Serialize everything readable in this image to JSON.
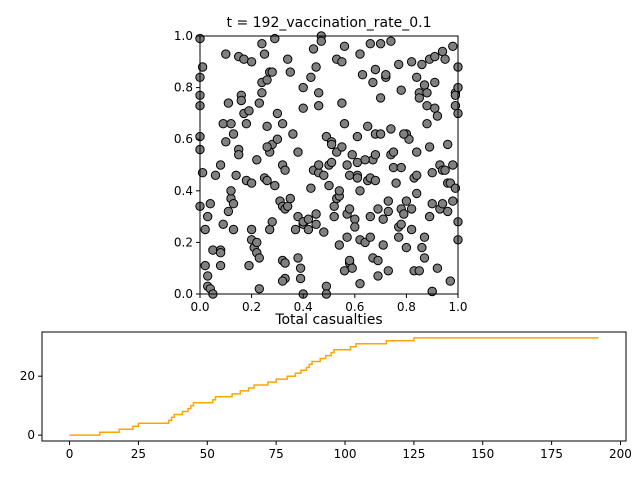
{
  "chart_data": [
    {
      "type": "scatter",
      "title": "t = 192_vaccination_rate_0.1",
      "xlabel": "",
      "ylabel": "",
      "xlim": [
        0,
        1
      ],
      "ylim": [
        0,
        1
      ],
      "grid": false,
      "marker_color": "#808080",
      "marker_edge_color": "#000000",
      "xticks": [
        "0.0",
        "0.2",
        "0.4",
        "0.6",
        "0.8",
        "1.0"
      ],
      "yticks": [
        "0.0",
        "0.2",
        "0.4",
        "0.6",
        "0.8",
        "1.0"
      ],
      "points": [
        [
          0.0,
          0.99
        ],
        [
          0.0,
          0.84
        ],
        [
          0.01,
          0.88
        ],
        [
          0.0,
          0.77
        ],
        [
          0.0,
          0.73
        ],
        [
          0.0,
          0.61
        ],
        [
          0.0,
          0.56
        ],
        [
          0.0,
          0.34
        ],
        [
          0.01,
          0.47
        ],
        [
          0.02,
          0.25
        ],
        [
          0.02,
          0.11
        ],
        [
          0.03,
          0.07
        ],
        [
          0.03,
          0.03
        ],
        [
          0.04,
          0.02
        ],
        [
          0.05,
          0.0
        ],
        [
          0.04,
          0.35
        ],
        [
          0.05,
          0.17
        ],
        [
          0.03,
          0.3
        ],
        [
          0.08,
          0.17
        ],
        [
          0.08,
          0.16
        ],
        [
          0.08,
          0.11
        ],
        [
          0.09,
          0.27
        ],
        [
          0.09,
          0.66
        ],
        [
          0.08,
          0.5
        ],
        [
          0.1,
          0.59
        ],
        [
          0.1,
          0.93
        ],
        [
          0.11,
          0.74
        ],
        [
          0.11,
          0.32
        ],
        [
          0.12,
          0.37
        ],
        [
          0.12,
          0.4
        ],
        [
          0.13,
          0.35
        ],
        [
          0.13,
          0.25
        ],
        [
          0.13,
          0.62
        ],
        [
          0.14,
          0.46
        ],
        [
          0.15,
          0.92
        ],
        [
          0.15,
          0.56
        ],
        [
          0.15,
          0.54
        ],
        [
          0.16,
          0.77
        ],
        [
          0.16,
          0.75
        ],
        [
          0.17,
          0.7
        ],
        [
          0.17,
          0.91
        ],
        [
          0.18,
          0.44
        ],
        [
          0.19,
          0.71
        ],
        [
          0.19,
          0.11
        ],
        [
          0.2,
          0.25
        ],
        [
          0.2,
          0.21
        ],
        [
          0.2,
          0.43
        ],
        [
          0.2,
          0.9
        ],
        [
          0.21,
          0.18
        ],
        [
          0.22,
          0.2
        ],
        [
          0.22,
          0.16
        ],
        [
          0.23,
          0.02
        ],
        [
          0.23,
          0.14
        ],
        [
          0.23,
          0.74
        ],
        [
          0.24,
          0.78
        ],
        [
          0.24,
          0.97
        ],
        [
          0.24,
          0.82
        ],
        [
          0.25,
          0.93
        ],
        [
          0.25,
          0.45
        ],
        [
          0.26,
          0.44
        ],
        [
          0.26,
          0.83
        ],
        [
          0.26,
          0.65
        ],
        [
          0.27,
          0.86
        ],
        [
          0.27,
          0.55
        ],
        [
          0.27,
          0.25
        ],
        [
          0.28,
          0.28
        ],
        [
          0.28,
          0.58
        ],
        [
          0.28,
          0.86
        ],
        [
          0.29,
          0.42
        ],
        [
          0.29,
          0.99
        ],
        [
          0.3,
          0.7
        ],
        [
          0.31,
          0.36
        ],
        [
          0.32,
          0.66
        ],
        [
          0.32,
          0.5
        ],
        [
          0.32,
          0.34
        ],
        [
          0.33,
          0.33
        ],
        [
          0.33,
          0.48
        ],
        [
          0.34,
          0.34
        ],
        [
          0.34,
          0.91
        ],
        [
          0.35,
          0.37
        ],
        [
          0.35,
          0.86
        ],
        [
          0.37,
          0.25
        ],
        [
          0.38,
          0.55
        ],
        [
          0.38,
          0.3
        ],
        [
          0.39,
          0.1
        ],
        [
          0.39,
          0.06
        ],
        [
          0.38,
          0.14
        ],
        [
          0.33,
          0.06
        ],
        [
          0.32,
          0.13
        ],
        [
          0.32,
          0.05
        ],
        [
          0.33,
          0.12
        ],
        [
          0.4,
          0.72
        ],
        [
          0.4,
          0.0
        ],
        [
          0.4,
          0.27
        ],
        [
          0.4,
          0.28
        ],
        [
          0.42,
          0.29
        ],
        [
          0.42,
          0.25
        ],
        [
          0.43,
          0.41
        ],
        [
          0.44,
          0.48
        ],
        [
          0.44,
          0.95
        ],
        [
          0.45,
          0.31
        ],
        [
          0.45,
          0.27
        ],
        [
          0.46,
          0.73
        ],
        [
          0.46,
          0.78
        ],
        [
          0.46,
          0.47
        ],
        [
          0.46,
          0.5
        ],
        [
          0.47,
          1.0
        ],
        [
          0.47,
          0.98
        ],
        [
          0.48,
          0.24
        ],
        [
          0.48,
          0.46
        ],
        [
          0.49,
          0.61
        ],
        [
          0.49,
          0.03
        ],
        [
          0.49,
          0.0
        ],
        [
          0.5,
          0.42
        ],
        [
          0.5,
          0.5
        ],
        [
          0.51,
          0.51
        ],
        [
          0.51,
          0.59
        ],
        [
          0.51,
          0.58
        ],
        [
          0.52,
          0.34
        ],
        [
          0.52,
          0.3
        ],
        [
          0.53,
          0.55
        ],
        [
          0.53,
          0.37
        ],
        [
          0.53,
          0.91
        ],
        [
          0.54,
          0.19
        ],
        [
          0.54,
          0.38
        ],
        [
          0.54,
          0.4
        ],
        [
          0.55,
          0.57
        ],
        [
          0.55,
          0.74
        ],
        [
          0.55,
          0.9
        ],
        [
          0.56,
          0.66
        ],
        [
          0.56,
          0.96
        ],
        [
          0.56,
          0.09
        ],
        [
          0.57,
          0.31
        ],
        [
          0.57,
          0.5
        ],
        [
          0.57,
          0.22
        ],
        [
          0.58,
          0.12
        ],
        [
          0.58,
          0.13
        ],
        [
          0.58,
          0.33
        ],
        [
          0.58,
          0.46
        ],
        [
          0.59,
          0.54
        ],
        [
          0.59,
          0.1
        ],
        [
          0.6,
          0.29
        ],
        [
          0.6,
          0.26
        ],
        [
          0.61,
          0.46
        ],
        [
          0.61,
          0.45
        ],
        [
          0.61,
          0.51
        ],
        [
          0.61,
          0.61
        ],
        [
          0.62,
          0.21
        ],
        [
          0.62,
          0.04
        ],
        [
          0.62,
          0.93
        ],
        [
          0.63,
          0.85
        ],
        [
          0.64,
          0.2
        ],
        [
          0.65,
          0.65
        ],
        [
          0.65,
          0.44
        ],
        [
          0.66,
          0.3
        ],
        [
          0.66,
          0.22
        ],
        [
          0.66,
          0.45
        ],
        [
          0.66,
          0.97
        ],
        [
          0.67,
          0.82
        ],
        [
          0.67,
          0.52
        ],
        [
          0.67,
          0.14
        ],
        [
          0.68,
          0.87
        ],
        [
          0.68,
          0.62
        ],
        [
          0.68,
          0.44
        ],
        [
          0.68,
          0.54
        ],
        [
          0.69,
          0.33
        ],
        [
          0.69,
          0.07
        ],
        [
          0.69,
          0.13
        ],
        [
          0.7,
          0.76
        ],
        [
          0.7,
          0.97
        ],
        [
          0.71,
          0.29
        ],
        [
          0.71,
          0.19
        ],
        [
          0.72,
          0.84
        ],
        [
          0.72,
          0.85
        ],
        [
          0.73,
          0.36
        ],
        [
          0.73,
          0.32
        ],
        [
          0.73,
          0.09
        ],
        [
          0.74,
          0.98
        ],
        [
          0.74,
          0.54
        ],
        [
          0.75,
          0.55
        ],
        [
          0.75,
          0.49
        ],
        [
          0.76,
          0.43
        ],
        [
          0.77,
          0.26
        ],
        [
          0.77,
          0.22
        ],
        [
          0.78,
          0.49
        ],
        [
          0.78,
          0.33
        ],
        [
          0.78,
          0.27
        ],
        [
          0.79,
          0.31
        ],
        [
          0.8,
          0.36
        ],
        [
          0.8,
          0.18
        ],
        [
          0.8,
          0.62
        ],
        [
          0.81,
          0.6
        ],
        [
          0.82,
          0.33
        ],
        [
          0.82,
          0.25
        ],
        [
          0.83,
          0.45
        ],
        [
          0.83,
          0.09
        ],
        [
          0.84,
          0.46
        ],
        [
          0.84,
          0.39
        ],
        [
          0.84,
          0.55
        ],
        [
          0.84,
          0.84
        ],
        [
          0.85,
          0.78
        ],
        [
          0.85,
          0.76
        ],
        [
          0.85,
          0.09
        ],
        [
          0.86,
          0.18
        ],
        [
          0.87,
          0.14
        ],
        [
          0.87,
          0.22
        ],
        [
          0.87,
          0.81
        ],
        [
          0.88,
          0.66
        ],
        [
          0.88,
          0.73
        ],
        [
          0.88,
          0.78
        ],
        [
          0.89,
          0.3
        ],
        [
          0.89,
          0.91
        ],
        [
          0.89,
          0.57
        ],
        [
          0.9,
          0.47
        ],
        [
          0.9,
          0.35
        ],
        [
          0.9,
          0.01
        ],
        [
          0.9,
          0.01
        ],
        [
          0.91,
          0.92
        ],
        [
          0.91,
          0.72
        ],
        [
          0.91,
          0.82
        ],
        [
          0.92,
          0.69
        ],
        [
          0.92,
          0.1
        ],
        [
          0.93,
          0.5
        ],
        [
          0.93,
          0.33
        ],
        [
          0.94,
          0.48
        ],
        [
          0.94,
          0.35
        ],
        [
          0.94,
          0.94
        ],
        [
          0.95,
          0.91
        ],
        [
          0.95,
          0.48
        ],
        [
          0.96,
          0.32
        ],
        [
          0.96,
          0.43
        ],
        [
          0.96,
          0.58
        ],
        [
          0.97,
          0.05
        ],
        [
          0.97,
          0.43
        ],
        [
          0.98,
          0.36
        ],
        [
          0.98,
          0.96
        ],
        [
          0.98,
          0.5
        ],
        [
          0.99,
          0.78
        ],
        [
          0.99,
          0.73
        ],
        [
          0.99,
          0.41
        ],
        [
          0.99,
          0.77
        ],
        [
          1.0,
          0.88
        ],
        [
          1.0,
          0.8
        ],
        [
          1.0,
          0.7
        ],
        [
          1.0,
          0.28
        ],
        [
          1.0,
          0.21
        ],
        [
          0.79,
          0.62
        ],
        [
          0.77,
          0.89
        ],
        [
          0.78,
          0.79
        ],
        [
          0.82,
          0.9
        ],
        [
          0.86,
          0.89
        ],
        [
          0.74,
          0.64
        ],
        [
          0.7,
          0.62
        ],
        [
          0.64,
          0.52
        ],
        [
          0.62,
          0.4
        ],
        [
          0.45,
          0.88
        ],
        [
          0.43,
          0.84
        ],
        [
          0.4,
          0.8
        ],
        [
          0.36,
          0.62
        ],
        [
          0.3,
          0.6
        ],
        [
          0.26,
          0.57
        ],
        [
          0.22,
          0.52
        ],
        [
          0.18,
          0.66
        ],
        [
          0.12,
          0.66
        ],
        [
          0.06,
          0.46
        ]
      ]
    },
    {
      "type": "line",
      "title": "Total casualties",
      "xlabel": "",
      "ylabel": "",
      "xlim": [
        -10,
        202
      ],
      "ylim": [
        -2,
        35
      ],
      "grid": false,
      "line_color": "#FFA500",
      "xticks": [
        "0",
        "25",
        "50",
        "75",
        "100",
        "125",
        "150",
        "175",
        "200"
      ],
      "yticks": [
        "0",
        "20"
      ],
      "x": [
        0,
        10,
        11,
        12,
        13,
        14,
        15,
        16,
        17,
        18,
        19,
        20,
        21,
        22,
        23,
        24,
        25,
        30,
        35,
        36,
        37,
        38,
        39,
        40,
        41,
        42,
        43,
        44,
        45,
        46,
        47,
        48,
        49,
        50,
        51,
        52,
        53,
        54,
        55,
        56,
        57,
        58,
        59,
        60,
        61,
        62,
        63,
        64,
        65,
        66,
        67,
        68,
        69,
        70,
        71,
        72,
        73,
        74,
        75,
        76,
        77,
        78,
        79,
        80,
        81,
        82,
        83,
        84,
        85,
        86,
        87,
        88,
        89,
        90,
        91,
        92,
        93,
        94,
        95,
        96,
        97,
        98,
        99,
        100,
        101,
        102,
        103,
        104,
        105,
        106,
        107,
        108,
        109,
        110,
        111,
        112,
        113,
        114,
        115,
        116,
        117,
        118,
        119,
        120,
        125,
        130,
        135,
        140,
        150,
        160,
        170,
        180,
        192
      ],
      "values": [
        0,
        0,
        1,
        1,
        1,
        1,
        1,
        1,
        1,
        2,
        2,
        2,
        2,
        2,
        3,
        3,
        4,
        4,
        4,
        5,
        6,
        7,
        7,
        7,
        8,
        8,
        9,
        10,
        11,
        11,
        11,
        11,
        11,
        11,
        11,
        12,
        13,
        13,
        13,
        13,
        13,
        13,
        14,
        14,
        14,
        15,
        15,
        15,
        16,
        16,
        17,
        17,
        17,
        17,
        17,
        18,
        18,
        18,
        19,
        19,
        19,
        19,
        20,
        20,
        20,
        21,
        21,
        22,
        22,
        23,
        24,
        25,
        25,
        25,
        26,
        26,
        27,
        27,
        28,
        29,
        29,
        29,
        29,
        29,
        29,
        30,
        30,
        31,
        31,
        31,
        31,
        31,
        31,
        31,
        31,
        31,
        31,
        31,
        32,
        32,
        32,
        32,
        32,
        32,
        33,
        33,
        33,
        33,
        33,
        33,
        33,
        33,
        33
      ]
    }
  ]
}
